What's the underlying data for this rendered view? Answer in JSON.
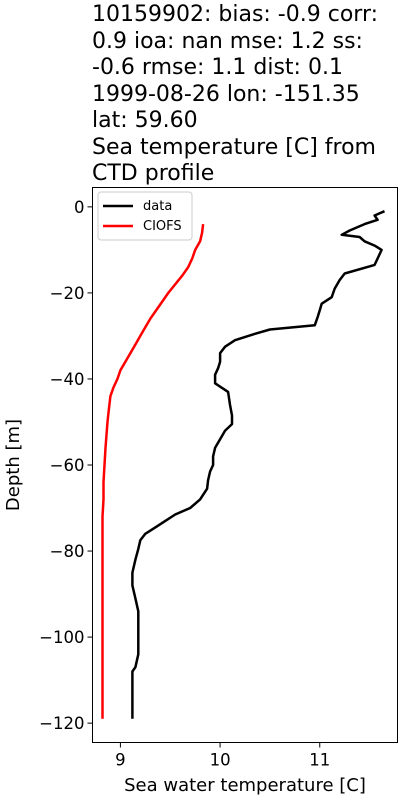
{
  "chart_data": {
    "type": "line",
    "title": "10159902: bias: -0.9  corr:\n0.9  ioa: nan  mse: 1.2  ss:\n-0.6  rmse: 1.1  dist: 0.1\n1999-08-26 lon: -151.35\nlat: 59.60\nSea temperature [C] from\nCTD profile",
    "xlabel": "Sea water temperature [C]",
    "ylabel": "Depth [m]",
    "xlim": [
      8.72,
      11.78
    ],
    "ylim": [
      -124.5,
      4.5
    ],
    "xticks": [
      9,
      10,
      11
    ],
    "xtick_labels": [
      "9",
      "10",
      "11"
    ],
    "yticks": [
      0,
      -20,
      -40,
      -60,
      -80,
      -100,
      -120
    ],
    "ytick_labels": [
      "0",
      "−20",
      "−40",
      "−60",
      "−80",
      "−100",
      "−120"
    ],
    "grid": false,
    "legend_position": "top-left",
    "series": [
      {
        "name": "data",
        "color": "#000000",
        "points": [
          [
            11.65,
            -1
          ],
          [
            11.55,
            -2
          ],
          [
            11.58,
            -3
          ],
          [
            11.45,
            -4
          ],
          [
            11.3,
            -5.5
          ],
          [
            11.22,
            -6.5
          ],
          [
            11.4,
            -7
          ],
          [
            11.45,
            -8
          ],
          [
            11.55,
            -9
          ],
          [
            11.62,
            -10
          ],
          [
            11.58,
            -12
          ],
          [
            11.55,
            -13.5
          ],
          [
            11.25,
            -15.5
          ],
          [
            11.2,
            -17
          ],
          [
            11.15,
            -19
          ],
          [
            11.12,
            -21
          ],
          [
            11.02,
            -22.5
          ],
          [
            11.0,
            -24
          ],
          [
            10.98,
            -25.5
          ],
          [
            10.95,
            -27.5
          ],
          [
            10.5,
            -28.5
          ],
          [
            10.35,
            -29.5
          ],
          [
            10.15,
            -31
          ],
          [
            10.05,
            -32.5
          ],
          [
            10.0,
            -34
          ],
          [
            10.0,
            -36
          ],
          [
            9.98,
            -37.5
          ],
          [
            9.95,
            -39
          ],
          [
            9.95,
            -41
          ],
          [
            10.08,
            -43
          ],
          [
            10.1,
            -46
          ],
          [
            10.12,
            -48.5
          ],
          [
            10.12,
            -50.5
          ],
          [
            10.05,
            -52
          ],
          [
            10.0,
            -54
          ],
          [
            9.95,
            -56
          ],
          [
            9.93,
            -58
          ],
          [
            9.93,
            -60
          ],
          [
            9.9,
            -61.5
          ],
          [
            9.88,
            -63.5
          ],
          [
            9.87,
            -65.5
          ],
          [
            9.8,
            -68
          ],
          [
            9.7,
            -70
          ],
          [
            9.55,
            -71.5
          ],
          [
            9.45,
            -73
          ],
          [
            9.35,
            -74.5
          ],
          [
            9.25,
            -76
          ],
          [
            9.2,
            -77.5
          ],
          [
            9.18,
            -79.5
          ],
          [
            9.15,
            -82
          ],
          [
            9.12,
            -85
          ],
          [
            9.12,
            -88
          ],
          [
            9.15,
            -91
          ],
          [
            9.18,
            -94
          ],
          [
            9.18,
            -97
          ],
          [
            9.18,
            -100
          ],
          [
            9.18,
            -104
          ],
          [
            9.15,
            -107
          ],
          [
            9.12,
            -108
          ],
          [
            9.12,
            -112
          ],
          [
            9.12,
            -117
          ],
          [
            9.12,
            -119
          ]
        ]
      },
      {
        "name": "CIOFS",
        "color": "#ff0000",
        "points": [
          [
            9.83,
            -4
          ],
          [
            9.82,
            -6
          ],
          [
            9.8,
            -8
          ],
          [
            9.75,
            -10
          ],
          [
            9.72,
            -12
          ],
          [
            9.68,
            -14
          ],
          [
            9.62,
            -16
          ],
          [
            9.55,
            -18
          ],
          [
            9.48,
            -20
          ],
          [
            9.42,
            -22
          ],
          [
            9.36,
            -24
          ],
          [
            9.3,
            -26
          ],
          [
            9.25,
            -28
          ],
          [
            9.2,
            -30
          ],
          [
            9.15,
            -32
          ],
          [
            9.1,
            -34
          ],
          [
            9.05,
            -36
          ],
          [
            9.0,
            -38
          ],
          [
            8.97,
            -40
          ],
          [
            8.93,
            -42
          ],
          [
            8.9,
            -44
          ],
          [
            8.89,
            -46
          ],
          [
            8.88,
            -48
          ],
          [
            8.87,
            -50
          ],
          [
            8.86,
            -53
          ],
          [
            8.85,
            -56
          ],
          [
            8.84,
            -60
          ],
          [
            8.83,
            -64
          ],
          [
            8.83,
            -68
          ],
          [
            8.82,
            -72
          ],
          [
            8.82,
            -80
          ],
          [
            8.82,
            -90
          ],
          [
            8.82,
            -100
          ],
          [
            8.82,
            -110
          ],
          [
            8.82,
            -119
          ]
        ]
      }
    ]
  }
}
